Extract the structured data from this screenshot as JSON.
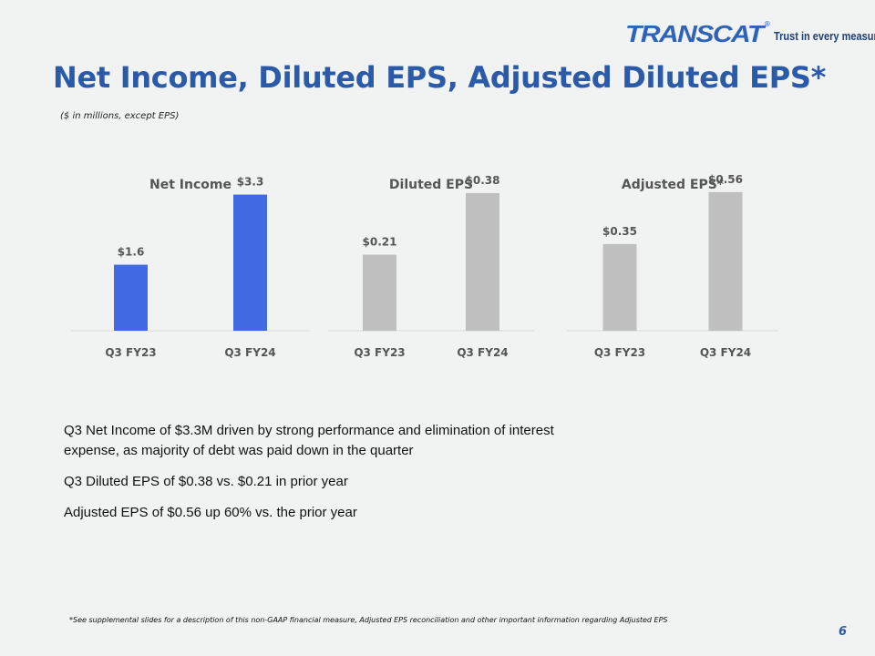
{
  "logo": {
    "wordmark": "TRANSCAT",
    "registered": "®",
    "tagline": "Trust in every measure"
  },
  "title": "Net Income, Diluted EPS, Adjusted Diluted EPS*",
  "subtitle": "($ in millions, except EPS)",
  "chart_data": [
    {
      "type": "bar",
      "title": "Net Income",
      "categories": [
        "Q3 FY23",
        "Q3 FY24"
      ],
      "values": [
        1.6,
        3.3
      ],
      "labels": [
        "$1.6",
        "$3.3"
      ],
      "ylim": [
        0,
        3.6
      ],
      "color": "#4169e1"
    },
    {
      "type": "bar",
      "title": "Diluted EPS",
      "categories": [
        "Q3 FY23",
        "Q3 FY24"
      ],
      "values": [
        0.21,
        0.38
      ],
      "labels": [
        "$0.21",
        "$0.38"
      ],
      "ylim": [
        0,
        0.41
      ],
      "color": "#bfbfbf"
    },
    {
      "type": "bar",
      "title": "Adjusted EPS*",
      "categories": [
        "Q3 FY23",
        "Q3 FY24"
      ],
      "values": [
        0.35,
        0.56
      ],
      "labels": [
        "$0.35",
        "$0.56"
      ],
      "ylim": [
        0,
        0.6
      ],
      "color": "#bfbfbf"
    }
  ],
  "bullets": [
    "Q3 Net Income of $3.3M driven by strong performance and elimination of interest expense, as majority of debt was paid down in the quarter",
    "Q3 Diluted EPS of $0.38 vs. $0.21 in prior year",
    "Adjusted EPS of $0.56 up 60% vs. the prior year"
  ],
  "footnote": "*See supplemental slides for a description of this non-GAAP financial measure, Adjusted EPS reconciliation and other important information regarding Adjusted EPS",
  "page_number": "6"
}
